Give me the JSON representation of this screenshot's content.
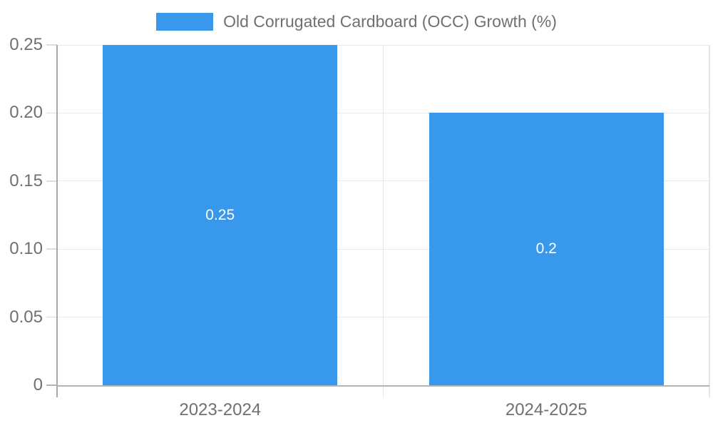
{
  "legend": {
    "label": "Old Corrugated Cardboard (OCC) Growth (%)"
  },
  "chart_data": {
    "type": "bar",
    "title": "",
    "categories": [
      "2023-2024",
      "2024-2025"
    ],
    "series": [
      {
        "name": "Old Corrugated Cardboard (OCC) Growth (%)",
        "values": [
          0.25,
          0.2
        ]
      }
    ],
    "bar_value_labels": [
      "0.25",
      "0.2"
    ],
    "ylim": [
      0,
      0.25
    ],
    "yticks": [
      {
        "value": 0,
        "label": "0"
      },
      {
        "value": 0.05,
        "label": "0.05"
      },
      {
        "value": 0.1,
        "label": "0.10"
      },
      {
        "value": 0.15,
        "label": "0.15"
      },
      {
        "value": 0.2,
        "label": "0.20"
      },
      {
        "value": 0.25,
        "label": "0.25"
      }
    ],
    "grid": true,
    "legend_position": "top",
    "colors": {
      "bar": "#3899EC",
      "bar_label": "#FFFFFF",
      "axis_text": "#707070",
      "grid_line": "#E8E8E8",
      "tick_line": "#DCDCDC",
      "axis_line": "#A8A8A8",
      "zero_line": "#B3B3B3",
      "separator_line": "#E6E6E6",
      "background": "#FFFFFF"
    }
  }
}
